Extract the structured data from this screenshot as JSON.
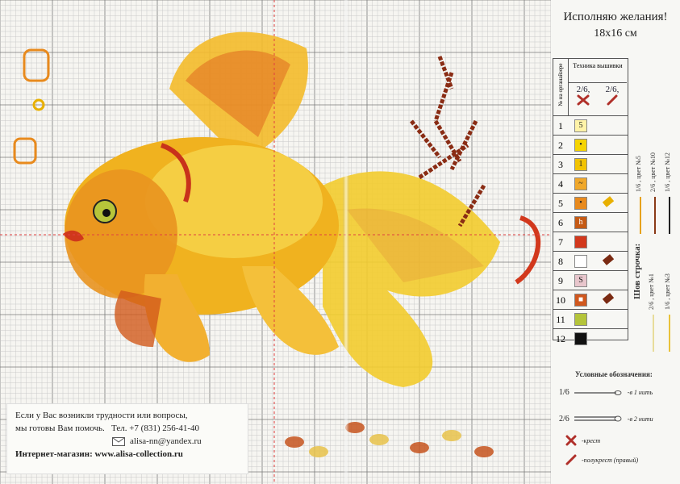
{
  "page": {
    "title": "Исполняю желания!",
    "size": "18х16 см"
  },
  "contact": {
    "line1": "Если у Вас возникли трудности или вопросы,",
    "line2_prefix": "мы готовы Вам помочь.",
    "phone_label": "Тел.",
    "phone": "+7 (831) 256-41-40",
    "email": "alisa-nn@yandex.ru",
    "shop_label": "Интернет-магазин:",
    "shop_url": "www.alisa-collection.ru"
  },
  "legend": {
    "no_label": "№ на органайзере",
    "technique": "Техника вышивки",
    "col1_header": "2/6,",
    "col2_header": "2/6,",
    "rows": [
      {
        "n": "1",
        "sym": "5",
        "bg": "#fff3a8",
        "half": null
      },
      {
        "n": "2",
        "sym": "•",
        "bg": "#f5d400",
        "half": null
      },
      {
        "n": "3",
        "sym": "1",
        "bg": "#f2c300",
        "half": null
      },
      {
        "n": "4",
        "sym": "~",
        "bg": "#f0a82a",
        "half": null
      },
      {
        "n": "5",
        "sym": "•",
        "bg": "#e88a1d",
        "half": "#e8b000"
      },
      {
        "n": "6",
        "sym": "h",
        "bg": "#c55a14",
        "half": null
      },
      {
        "n": "7",
        "sym": "",
        "bg": "#d2381c",
        "half": null
      },
      {
        "n": "8",
        "sym": "",
        "bg": "#ffffff",
        "half": "#7a2a12"
      },
      {
        "n": "9",
        "sym": "S",
        "bg": "#e8c6cc",
        "half": null
      },
      {
        "n": "10",
        "sym": "■",
        "bg": "#d0581e",
        "half": "#7a2a12"
      },
      {
        "n": "11",
        "sym": "",
        "bg": "#b4c43a",
        "half": null
      },
      {
        "n": "12",
        "sym": "",
        "bg": "#111111",
        "half": null
      }
    ]
  },
  "backstitch": {
    "label": "Шов строчка:",
    "items": [
      {
        "text": "1/6 , цвет №5",
        "color": "#e6a21c"
      },
      {
        "text": "2/6 , цвет №10",
        "color": "#8a3a16"
      },
      {
        "text": "1/6 , цвет №12",
        "color": "#222222"
      },
      {
        "text": "2/6 , цвет №1",
        "color": "#e8dc9a"
      },
      {
        "text": "1/6 , цвет №3",
        "color": "#e9c23a"
      }
    ]
  },
  "notes": {
    "header": "Условные обозначения:",
    "n1_frac": "1/6",
    "n1_text": "-в 1 нить",
    "n2_frac": "2/6",
    "n2_text": "-в 2 нити",
    "n3_text": "-крест",
    "n4_text": "-полукрест (правый)"
  }
}
